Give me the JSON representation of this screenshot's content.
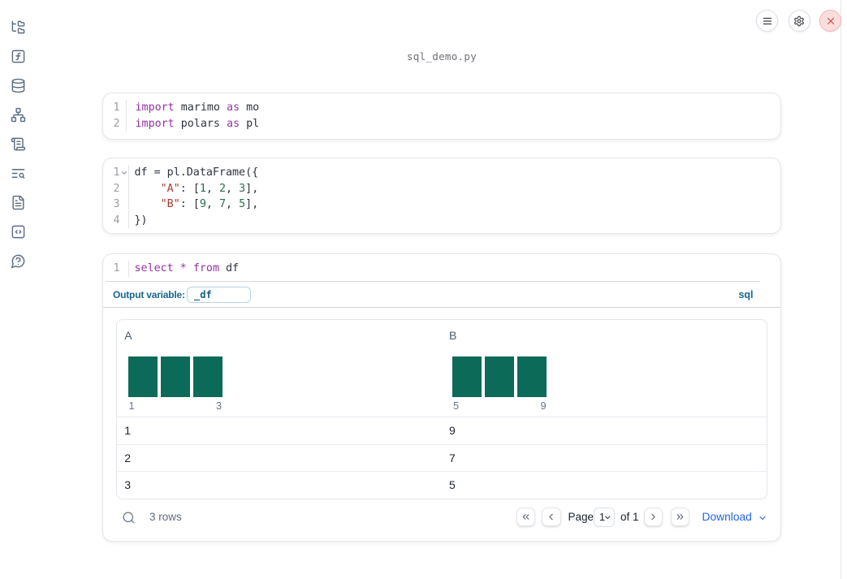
{
  "app": "marimo notebook",
  "header": {
    "filename": "sql_demo.py",
    "buttons": [
      {
        "name": "notebook-menu",
        "icon": "hamburger-menu-icon"
      },
      {
        "name": "settings",
        "icon": "gear-icon"
      },
      {
        "name": "shutdown",
        "icon": "close-x-icon",
        "accent": "#c64848",
        "background": "#fbdddd"
      }
    ]
  },
  "sidebar": {
    "items": [
      {
        "icon": "file-explorer-tree-icon"
      },
      {
        "icon": "function-square-icon"
      },
      {
        "icon": "database-icon"
      },
      {
        "icon": "dependency-graph-icon"
      },
      {
        "icon": "scroll-script-icon"
      },
      {
        "icon": "logs-search-icon"
      },
      {
        "icon": "document-icon"
      },
      {
        "icon": "code-snippets-icon"
      },
      {
        "icon": "help-chat-icon"
      }
    ]
  },
  "cells": [
    {
      "id": "imports",
      "language": "python",
      "lines": [
        {
          "n": "1",
          "fold": false,
          "tokens": [
            {
              "c": "kw",
              "t": "import"
            },
            {
              "c": "pl",
              "t": " marimo "
            },
            {
              "c": "kw",
              "t": "as"
            },
            {
              "c": "pl",
              "t": " mo"
            }
          ]
        },
        {
          "n": "2",
          "fold": false,
          "tokens": [
            {
              "c": "kw",
              "t": "import"
            },
            {
              "c": "pl",
              "t": " polars "
            },
            {
              "c": "kw",
              "t": "as"
            },
            {
              "c": "pl",
              "t": " pl"
            }
          ]
        }
      ]
    },
    {
      "id": "dataframe",
      "language": "python",
      "lines": [
        {
          "n": "1",
          "fold": true,
          "tokens": [
            {
              "c": "pl",
              "t": "df = pl.DataFrame({"
            }
          ]
        },
        {
          "n": "2",
          "fold": false,
          "tokens": [
            {
              "c": "pl",
              "t": "    "
            },
            {
              "c": "str",
              "t": "\"A\""
            },
            {
              "c": "pl",
              "t": ": ["
            },
            {
              "c": "num",
              "t": "1"
            },
            {
              "c": "pl",
              "t": ", "
            },
            {
              "c": "num",
              "t": "2"
            },
            {
              "c": "pl",
              "t": ", "
            },
            {
              "c": "num",
              "t": "3"
            },
            {
              "c": "pl",
              "t": "],"
            }
          ]
        },
        {
          "n": "3",
          "fold": false,
          "tokens": [
            {
              "c": "pl",
              "t": "    "
            },
            {
              "c": "str",
              "t": "\"B\""
            },
            {
              "c": "pl",
              "t": ": ["
            },
            {
              "c": "num",
              "t": "9"
            },
            {
              "c": "pl",
              "t": ", "
            },
            {
              "c": "num",
              "t": "7"
            },
            {
              "c": "pl",
              "t": ", "
            },
            {
              "c": "num",
              "t": "5"
            },
            {
              "c": "pl",
              "t": "],"
            }
          ]
        },
        {
          "n": "4",
          "fold": false,
          "tokens": [
            {
              "c": "pl",
              "t": "})"
            }
          ]
        }
      ]
    },
    {
      "id": "sql",
      "language": "sql",
      "lines": [
        {
          "n": "1",
          "fold": false,
          "tokens": [
            {
              "c": "kw",
              "t": "select"
            },
            {
              "c": "pl",
              "t": " "
            },
            {
              "c": "kw",
              "t": "*"
            },
            {
              "c": "pl",
              "t": " "
            },
            {
              "c": "kw",
              "t": "from"
            },
            {
              "c": "pl",
              "t": " df"
            }
          ]
        }
      ],
      "output_variable_label": "Output variable:",
      "output_variable_value": "_df",
      "language_badge": "sql"
    }
  ],
  "table": {
    "columns": [
      {
        "name": "A",
        "histogram": {
          "bars": [
            1,
            1,
            1
          ],
          "min_label": "1",
          "max_label": "3"
        }
      },
      {
        "name": "B",
        "histogram": {
          "bars": [
            1,
            1,
            1
          ],
          "min_label": "5",
          "max_label": "9"
        }
      }
    ],
    "rows": [
      [
        "1",
        "9"
      ],
      [
        "2",
        "7"
      ],
      [
        "3",
        "5"
      ]
    ],
    "bar_color": "#0c6b58",
    "footer": {
      "row_count": "3 rows",
      "page_label": "Page",
      "page_value": "1",
      "of_label": "of 1",
      "download_label": "Download"
    }
  }
}
